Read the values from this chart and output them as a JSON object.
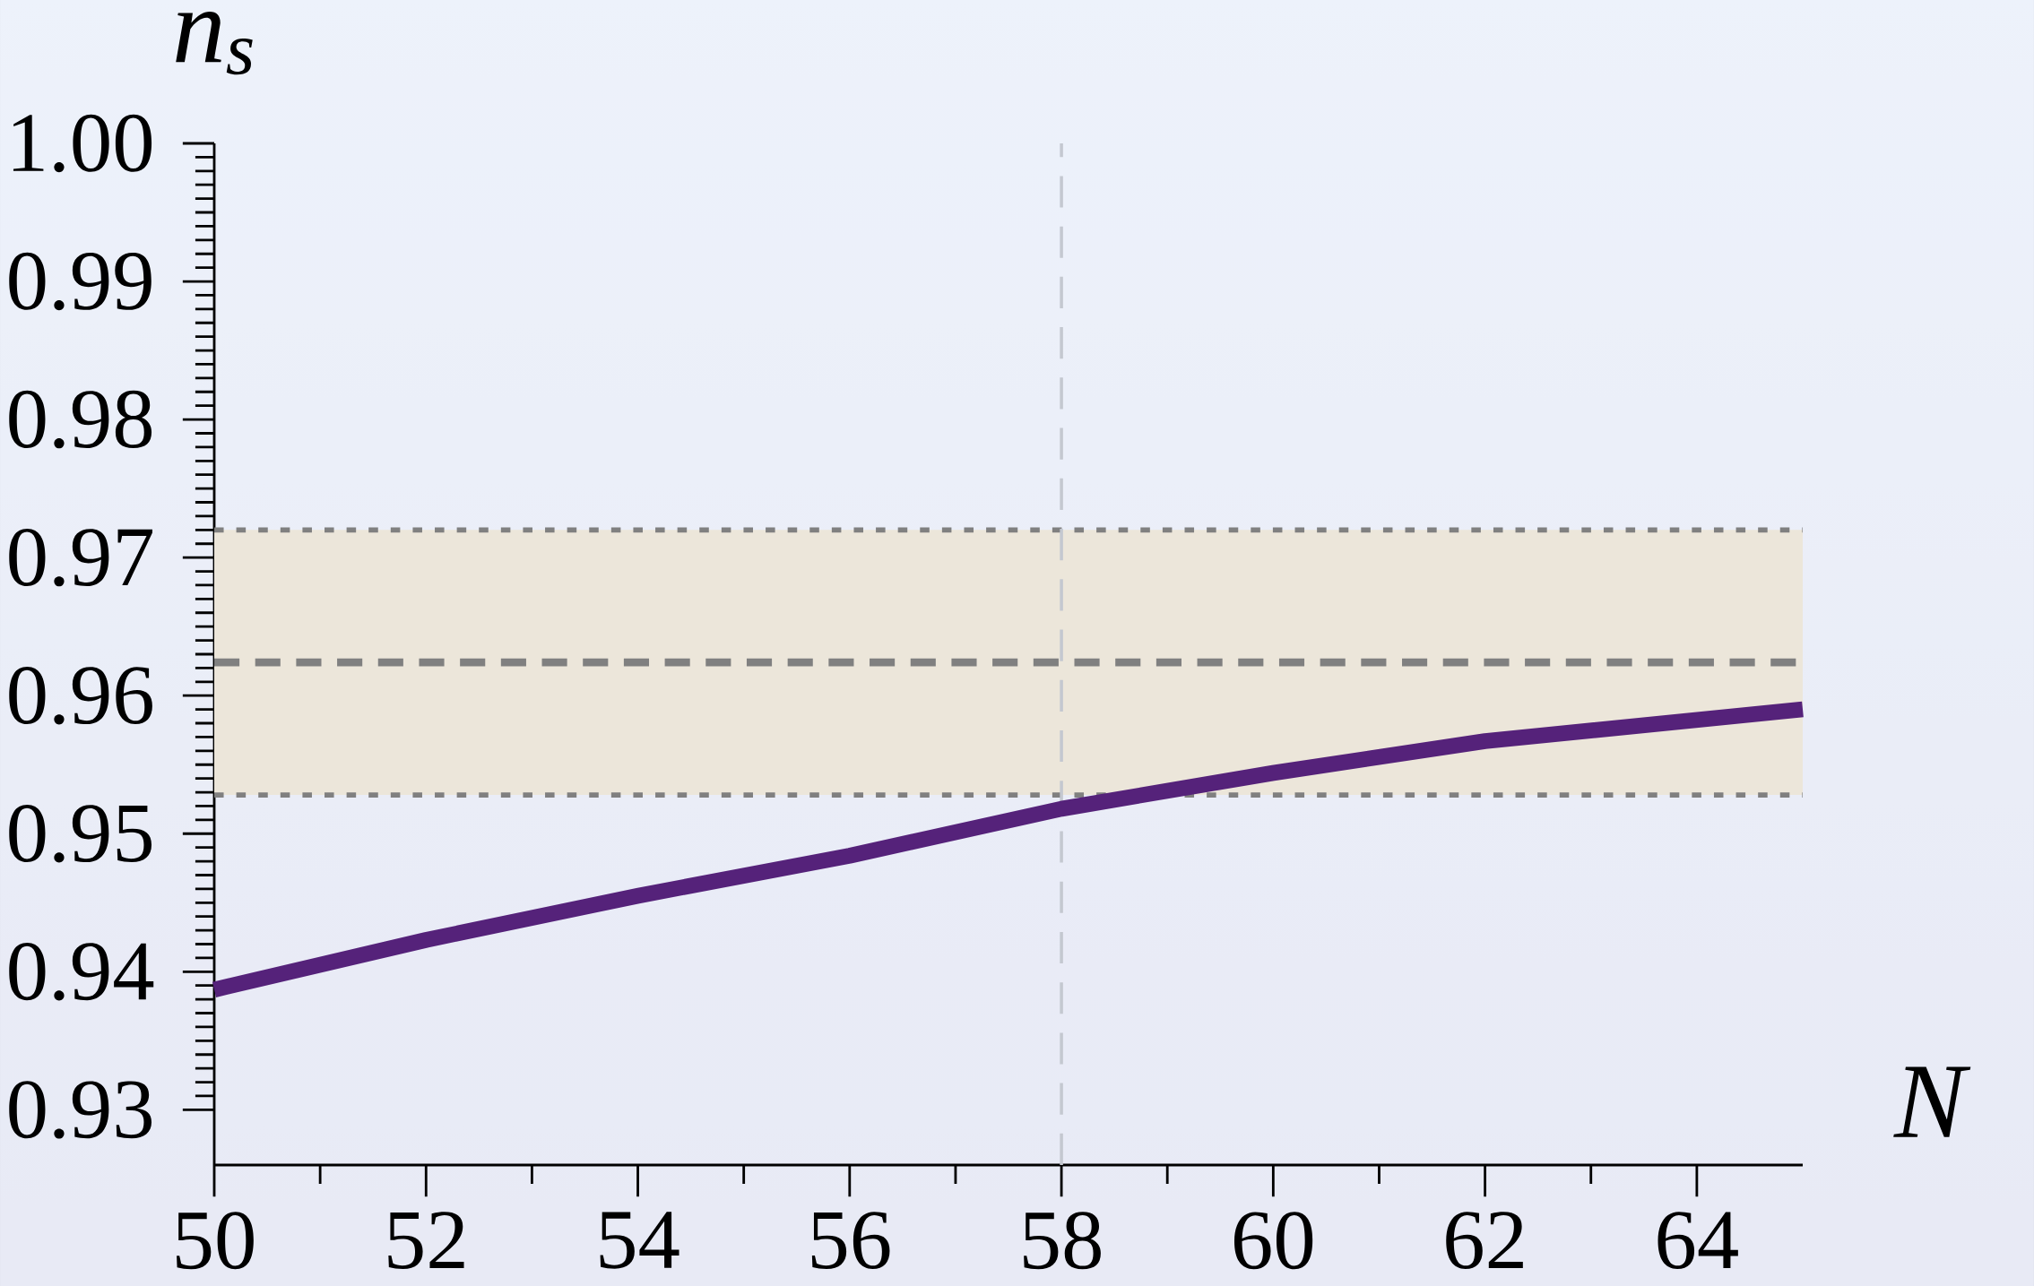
{
  "chart_data": {
    "type": "line",
    "xlabel": "N",
    "ylabel": "n$_{s}$",
    "x": [
      50,
      52,
      54,
      56,
      58,
      60,
      62,
      65
    ],
    "series": [
      {
        "color": "#55227a",
        "values": [
          0.9387,
          0.9423,
          0.9455,
          0.9484,
          0.9518,
          0.9544,
          0.9567,
          0.959
        ]
      }
    ],
    "xlim": [
      50,
      65
    ],
    "ylim": [
      0.926,
      1.0
    ],
    "xticks": [
      50,
      52,
      54,
      56,
      58,
      60,
      62,
      64
    ],
    "yticks": [
      0.93,
      0.94,
      0.95,
      0.96,
      0.97,
      0.98,
      0.99,
      {
        "value": 1.0,
        "label": "1.00"
      }
    ],
    "ref_lines": [
      {
        "axis": "y",
        "value": 0.9624,
        "color": "#808080",
        "line_style": "dashed"
      },
      {
        "axis": "y",
        "value": 0.972,
        "color": "#808080",
        "line_style": "dotted"
      },
      {
        "axis": "y",
        "value": 0.9528,
        "color": "#808080",
        "line_style": "dotted"
      },
      {
        "axis": "x",
        "value": 58,
        "color": "#c4c8d0",
        "line_style": "dashed"
      }
    ],
    "bands": [
      {
        "axis": "y",
        "from": 0.9528,
        "to": 0.972,
        "color": "#ece6da"
      }
    ],
    "grid": false,
    "marker": "none",
    "line_style": "solid"
  }
}
